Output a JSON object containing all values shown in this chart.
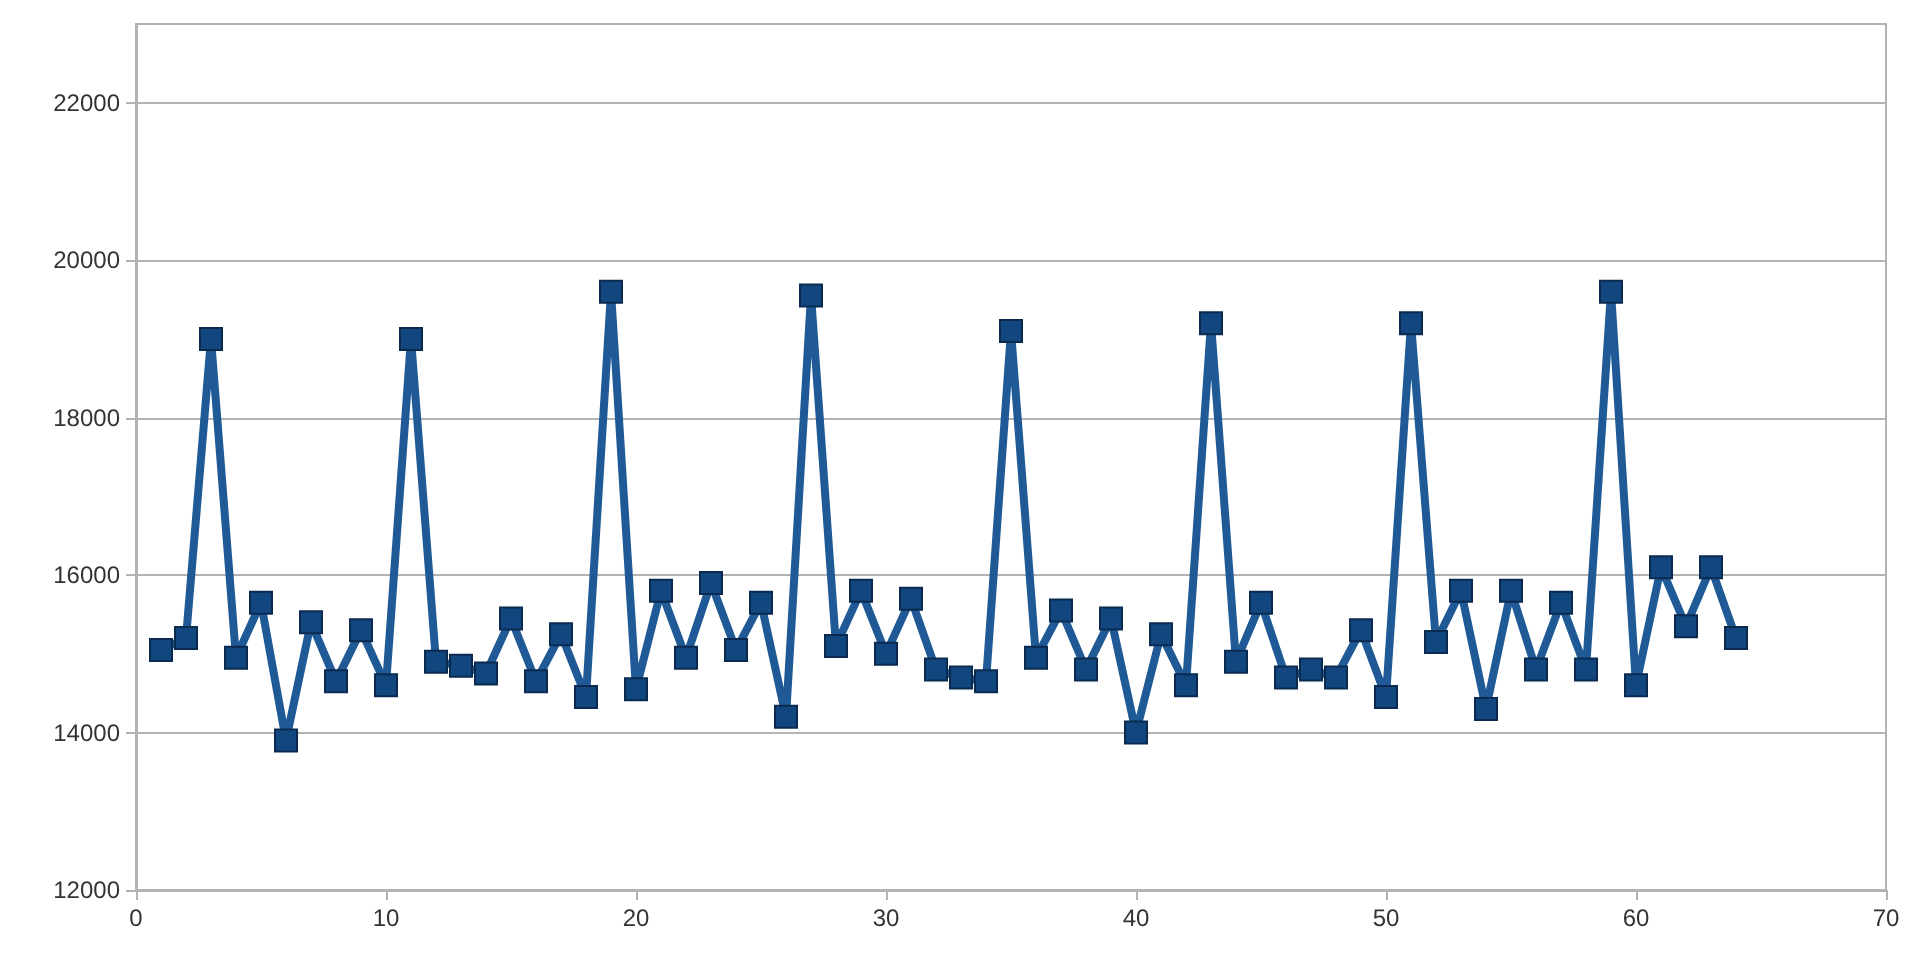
{
  "chart_data": {
    "type": "line",
    "marker": "square",
    "grid": "y",
    "x": [
      1,
      2,
      3,
      4,
      5,
      6,
      7,
      8,
      9,
      10,
      11,
      12,
      13,
      14,
      15,
      16,
      17,
      18,
      19,
      20,
      21,
      22,
      23,
      24,
      25,
      26,
      27,
      28,
      29,
      30,
      31,
      32,
      33,
      34,
      35,
      36,
      37,
      38,
      39,
      40,
      41,
      42,
      43,
      44,
      45,
      46,
      47,
      48,
      49,
      50,
      51,
      52,
      53,
      54,
      55,
      56,
      57,
      58,
      59,
      60,
      61,
      62,
      63,
      64
    ],
    "series": [
      {
        "color": "#1f5a96",
        "values": [
          15050,
          15200,
          19000,
          14950,
          15650,
          13900,
          15400,
          14650,
          15300,
          14600,
          19000,
          14900,
          14850,
          14750,
          15450,
          14650,
          15250,
          14450,
          19600,
          14550,
          15800,
          14950,
          15900,
          15050,
          15650,
          14200,
          19550,
          15100,
          15800,
          15000,
          15700,
          14800,
          14700,
          14650,
          19100,
          14950,
          15550,
          14800,
          15450,
          14000,
          15250,
          14600,
          19200,
          14900,
          15650,
          14700,
          14800,
          14700,
          15300,
          14450,
          19200,
          15150,
          15800,
          14300,
          15800,
          14800,
          15650,
          14800,
          19600,
          14600,
          16100,
          15350,
          16100,
          15200
        ]
      }
    ],
    "xlim": [
      0,
      70
    ],
    "xticks": [
      0,
      10,
      20,
      30,
      40,
      50,
      60,
      70
    ],
    "ylim": [
      12000,
      23000
    ],
    "yticks": [
      12000,
      14000,
      16000,
      18000,
      20000,
      22000
    ]
  }
}
